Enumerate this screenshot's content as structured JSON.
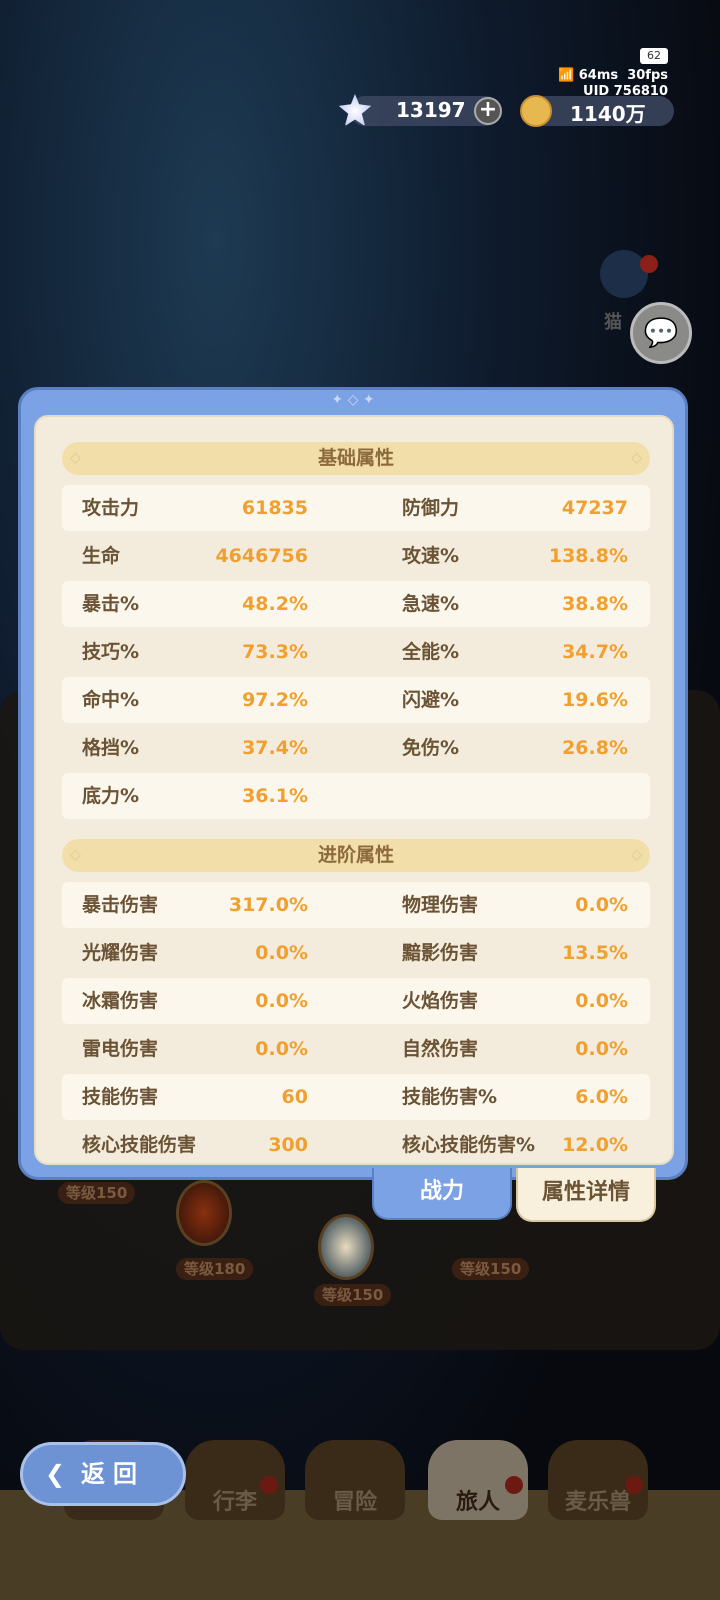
{
  "hud": {
    "battery": "62",
    "ping": "64ms",
    "fps": "30fps",
    "uid": "UID 756810",
    "gems": "13197",
    "gold": "1140万",
    "side_label": "猫"
  },
  "panel": {
    "basic_title": "基础属性",
    "basic": [
      [
        "攻击力",
        "61835",
        "防御力",
        "47237"
      ],
      [
        "生命",
        "4646756",
        "攻速%",
        "138.8%"
      ],
      [
        "暴击%",
        "48.2%",
        "急速%",
        "38.8%"
      ],
      [
        "技巧%",
        "73.3%",
        "全能%",
        "34.7%"
      ],
      [
        "命中%",
        "97.2%",
        "闪避%",
        "19.6%"
      ],
      [
        "格挡%",
        "37.4%",
        "免伤%",
        "26.8%"
      ],
      [
        "底力%",
        "36.1%",
        "",
        ""
      ]
    ],
    "advanced_title": "进阶属性",
    "advanced": [
      [
        "暴击伤害",
        "317.0%",
        "物理伤害",
        "0.0%"
      ],
      [
        "光耀伤害",
        "0.0%",
        "黯影伤害",
        "13.5%"
      ],
      [
        "冰霜伤害",
        "0.0%",
        "火焰伤害",
        "0.0%"
      ],
      [
        "雷电伤害",
        "0.0%",
        "自然伤害",
        "0.0%"
      ],
      [
        "技能伤害",
        "60",
        "技能伤害%",
        "6.0%"
      ],
      [
        "核心技能伤害",
        "300",
        "核心技能伤害%",
        "12.0%"
      ]
    ]
  },
  "tabs": {
    "power": "战力",
    "details": "属性详情"
  },
  "levels": [
    "等级150",
    "等级180",
    "等级150",
    "等级150"
  ],
  "nav": {
    "back": "返回",
    "items": [
      "行李",
      "冒险",
      "旅人",
      "麦乐兽"
    ]
  },
  "colors": {
    "accent": "#7ba2e4",
    "value": "#f0a030",
    "label": "#6b5335"
  }
}
